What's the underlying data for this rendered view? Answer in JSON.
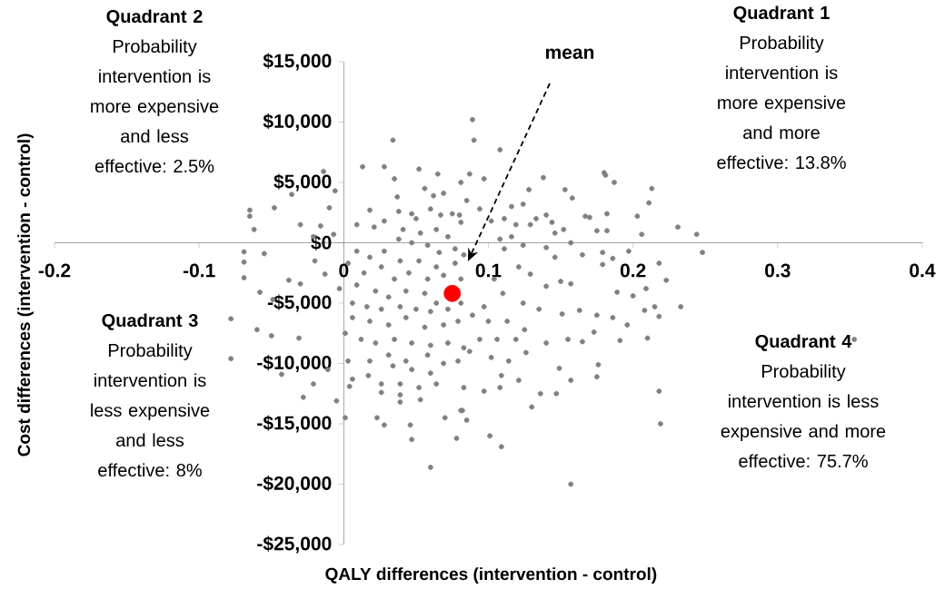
{
  "chart_data": {
    "type": "scatter",
    "xlabel": "QALY differences (intervention - control)",
    "ylabel": "Cost differences (intervention - control)",
    "xlim": [
      -0.2,
      0.4
    ],
    "ylim": [
      -25000,
      15000
    ],
    "xticks": [
      -0.2,
      -0.1,
      0,
      0.1,
      0.2,
      0.3,
      0.4
    ],
    "yticks": [
      {
        "value": -25000,
        "label": "-$25,000"
      },
      {
        "value": -20000,
        "label": "-$20,000"
      },
      {
        "value": -15000,
        "label": "-$15,000"
      },
      {
        "value": -10000,
        "label": "-$10,000"
      },
      {
        "value": -5000,
        "label": "-$5,000"
      },
      {
        "value": 0,
        "label": "$0"
      },
      {
        "value": 5000,
        "label": "$5,000"
      },
      {
        "value": 10000,
        "label": "$10,000"
      },
      {
        "value": 15000,
        "label": "$15,000"
      }
    ],
    "marker": "circle",
    "series": [
      {
        "color": "#808080",
        "x": [
          0.089,
          0.09,
          0.034,
          0.108,
          0.013,
          0.028,
          0.052,
          -0.014,
          0.18,
          0.187,
          0.213,
          0.211,
          0.167,
          0.203,
          0.231,
          0.244,
          0.248,
          0.233,
          0.218,
          0.218,
          0.219,
          0.353,
          0.157,
          0.06,
          0.109,
          0.101,
          -0.065,
          -0.069,
          -0.069,
          -0.078,
          -0.078,
          -0.06,
          -0.069,
          -0.055,
          -0.065,
          -0.048,
          -0.062,
          -0.036,
          -0.006,
          -0.028,
          -0.043,
          -0.021,
          -0.005,
          0.001,
          0.023,
          0.028,
          0.047,
          0.046,
          -0.05,
          -0.031,
          -0.011,
          -0.038,
          -0.03,
          -0.02,
          -0.013,
          -0.007,
          -0.016,
          -0.058,
          -0.049,
          -0.03,
          -0.021,
          -0.01,
          0.087,
          0.097,
          0.138,
          0.128,
          0.153,
          0.158,
          0.181,
          0.17,
          0.182,
          0.175,
          0.182,
          0.206,
          0.197,
          0.179,
          0.186,
          0.179,
          0.218,
          0.223,
          0.209,
          0.2,
          0.189,
          0.215,
          0.208,
          0.196,
          0.186,
          0.175,
          0.173,
          0.191,
          0.21,
          0.176,
          0.175,
          0.157,
          0.147,
          0.136,
          0.13,
          0.149,
          0.165,
          0.155,
          0.14,
          0.126,
          0.109,
          0.121,
          0.108,
          0.097,
          0.083,
          0.081,
          0.085,
          0.102,
          0.114,
          0.125,
          0.151,
          0.163,
          0.157,
          0.15,
          0.14,
          0.129,
          0.121,
          0.146,
          0.157,
          0.165,
          0.14,
          0.124,
          0.111,
          0.104,
          0.11,
          0.124,
          0.135,
          0.097,
          0.089,
          0.1,
          0.113,
          0.119,
          0.106,
          0.094,
          0.087,
          0.108,
          0.116,
          0.129,
          0.14,
          0.146,
          0.152,
          0.119,
          0.111,
          0.102,
          0.094,
          0.085,
          0.08,
          0.116,
          0.124,
          0.133,
          0.144,
          0.056,
          0.037,
          0.018,
          0.062,
          0.069,
          0.081,
          0.035,
          0.065,
          0.038,
          0.047,
          0.05,
          0.06,
          0.067,
          0.075,
          0.081,
          0.009,
          0.021,
          0.028,
          0.041,
          0.053,
          0.064,
          0.072,
          0.038,
          0.047,
          0.058,
          0.066,
          0.077,
          0.083,
          0.009,
          0.018,
          0.028,
          0.039,
          0.052,
          0.064,
          0.077,
          0.003,
          0.014,
          0.026,
          0.035,
          0.045,
          0.058,
          0.069,
          0.081,
          -0.003,
          0.009,
          0.022,
          0.031,
          0.043,
          0.056,
          0.064,
          0.072,
          0.081,
          0.006,
          0.016,
          0.026,
          0.039,
          0.05,
          0.06,
          0.043,
          0.031,
          0.018,
          0.006,
          0.056,
          0.069,
          0.079,
          0.001,
          0.012,
          0.022,
          0.035,
          0.047,
          0.06,
          0.072,
          0.083,
          0.003,
          0.018,
          0.031,
          0.043,
          0.058,
          0.069,
          0.079,
          0.034,
          0.047,
          0.06,
          0.006,
          0.017,
          0.026,
          0.039,
          0.052,
          0.064,
          0.026,
          0.039,
          0.053,
          0.07,
          0.082,
          0.078,
          0.039,
          0.004
        ],
        "values": [
          10200,
          8500,
          8500,
          7700,
          6300,
          6300,
          6100,
          5900,
          5800,
          5000,
          4500,
          3300,
          2200,
          2200,
          1300,
          700,
          -800,
          -5300,
          -6100,
          -12300,
          -15000,
          -8000,
          -20000,
          -18600,
          -16900,
          -16000,
          2700,
          -1600,
          -2900,
          -6300,
          -9600,
          -7200,
          -750,
          -900,
          2200,
          2900,
          1100,
          4000,
          4300,
          -12800,
          -10900,
          -11700,
          -13100,
          -14500,
          -14500,
          -15100,
          -16300,
          -15100,
          -7700,
          -7900,
          -10500,
          -3100,
          -3400,
          -1500,
          -2600,
          700,
          1400,
          -4100,
          -4700,
          1500,
          500,
          2900,
          5700,
          5300,
          5400,
          4400,
          4400,
          3700,
          5600,
          2100,
          2400,
          1000,
          1000,
          700,
          -700,
          -800,
          -1300,
          -1800,
          -1700,
          -3100,
          -3800,
          -4400,
          -4100,
          -5300,
          -5600,
          -6800,
          -6200,
          -6000,
          -7400,
          -8100,
          -7900,
          -10100,
          -11100,
          -11400,
          -12500,
          -12500,
          -13600,
          -10400,
          -8200,
          -8000,
          -8300,
          -9100,
          -11000,
          -11400,
          -12000,
          -12300,
          -12000,
          -13900,
          -14700,
          -9500,
          -9800,
          -7200,
          -5900,
          -5600,
          -3400,
          -3200,
          -3600,
          -2600,
          -2000,
          -1200,
          0,
          -1000,
          -400,
          -200,
          -500,
          -3000,
          -4200,
          -5000,
          -5500,
          -5300,
          -6000,
          -6500,
          -6500,
          -8000,
          -8000,
          -8000,
          -9000,
          300,
          500,
          1500,
          2300,
          800,
          1100,
          1500,
          2000,
          1800,
          2800,
          3500,
          2300,
          3000,
          3200,
          2000,
          1700,
          4500,
          3800,
          2700,
          3900,
          4100,
          5000,
          5300,
          5700,
          2600,
          2400,
          2000,
          2800,
          2300,
          2400,
          1700,
          1500,
          1300,
          1800,
          1100,
          800,
          1100,
          500,
          300,
          0,
          -200,
          -800,
          -500,
          -1000,
          -700,
          -1200,
          -700,
          -1500,
          -1500,
          -2000,
          -1700,
          -1700,
          -2500,
          -2000,
          -3000,
          -2500,
          -3000,
          -2700,
          -3000,
          -3800,
          -3500,
          -4000,
          -4500,
          -4000,
          -4200,
          -5000,
          -5500,
          -5000,
          -5000,
          -5300,
          -5500,
          -5300,
          -5500,
          -5700,
          -6200,
          -6800,
          -6500,
          -6200,
          -7000,
          -6800,
          -6500,
          -7500,
          -8000,
          -8300,
          -8000,
          -8300,
          -8500,
          -8300,
          -8700,
          -9800,
          -9800,
          -9300,
          -9800,
          -9300,
          -10000,
          -9800,
          -10200,
          -10500,
          -10800,
          -11300,
          -11000,
          -11700,
          -11700,
          -12000,
          -11700,
          -12400,
          -12600,
          -13000,
          -14500,
          -13900,
          -16200,
          -13200,
          -11900
        ]
      },
      {
        "color": "#ff0000",
        "x": [
          0.075
        ],
        "values": [
          -4200
        ]
      }
    ],
    "annotations": [
      "mean",
      "Quadrant 1",
      "Probability intervention is more expensive and more effective: 13.8%",
      "Quadrant 2",
      "Probability intervention is more expensive and less effective: 2.5%",
      "Quadrant 3",
      "Probability intervention is less expensive and less effective: 8%",
      "Quadrant 4",
      "Probability intervention is less expensive and more effective: 75.7%"
    ]
  }
}
